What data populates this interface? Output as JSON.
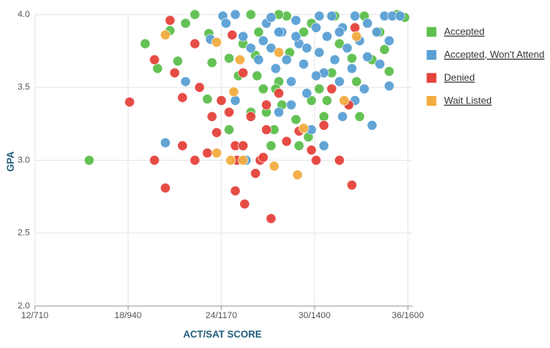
{
  "chart_data": {
    "type": "scatter",
    "x_label": "ACT/SAT SCORE",
    "y_label": "GPA",
    "xlim": [
      12,
      36.3
    ],
    "ylim": [
      2,
      4
    ],
    "xticks": [
      {
        "value": 12,
        "label": "12/710"
      },
      {
        "value": 18,
        "label": "18/940"
      },
      {
        "value": 24,
        "label": "24/1170"
      },
      {
        "value": 30,
        "label": "30/1400"
      },
      {
        "value": 36,
        "label": "36/1600"
      }
    ],
    "yticks": [
      {
        "value": 2,
        "label": "2.0"
      },
      2.5,
      {
        "value": 3,
        "label": "3.0"
      },
      3.5,
      {
        "value": 4,
        "label": "4.0"
      }
    ],
    "grid": true,
    "legend": "right",
    "series": [
      {
        "name": "Accepted",
        "color": "#5cbf4c",
        "x": [
          15.5,
          19.1,
          19.9,
          20.7,
          21.2,
          22.3,
          21.7,
          23.2,
          23.4,
          23.1,
          24.5,
          24.5,
          25.1,
          25.4,
          25.9,
          26.2,
          26.4,
          26.7,
          26.9,
          27.2,
          27.4,
          27.7,
          27.9,
          28.2,
          28.4,
          28.8,
          29.0,
          29.6,
          29.8,
          30.3,
          30.6,
          30.8,
          31.1,
          31.3,
          31.6,
          32.2,
          32.4,
          32.7,
          32.9,
          33.2,
          33.7,
          34.2,
          34.5,
          34.8,
          35.8,
          35.3,
          25.9,
          26.3,
          27.5,
          29.3,
          29.8,
          27.7
        ],
        "values": [
          3.0,
          3.8,
          3.63,
          3.89,
          3.68,
          4.0,
          3.94,
          3.87,
          3.67,
          3.42,
          3.21,
          3.7,
          3.58,
          3.8,
          4.0,
          3.72,
          3.88,
          3.49,
          3.33,
          3.1,
          3.21,
          3.54,
          3.38,
          3.99,
          3.74,
          3.28,
          3.1,
          3.16,
          3.41,
          3.49,
          3.3,
          3.41,
          3.6,
          3.99,
          3.8,
          3.38,
          3.7,
          3.54,
          3.3,
          3.99,
          3.69,
          3.88,
          3.76,
          3.61,
          3.98,
          4.0,
          3.33,
          3.58,
          3.49,
          3.88,
          3.94,
          4.0
        ]
      },
      {
        "name": "Accepted, Won't Attend",
        "color": "#5a9fd4",
        "x": [
          20.4,
          21.7,
          23.3,
          24.1,
          24.3,
          24.9,
          24.9,
          25.4,
          25.6,
          26.4,
          26.7,
          26.9,
          27.2,
          27.5,
          27.7,
          27.9,
          28.2,
          28.5,
          28.8,
          29.0,
          29.3,
          29.5,
          29.8,
          30.1,
          30.3,
          30.6,
          30.6,
          30.8,
          31.1,
          31.3,
          31.6,
          31.8,
          32.1,
          32.4,
          32.6,
          32.9,
          33.2,
          33.4,
          33.7,
          34.0,
          34.2,
          34.5,
          34.8,
          35.0,
          35.5,
          33.4,
          32.6,
          31.8,
          28.8,
          27.7,
          31.6,
          30.3,
          27.2,
          25.9,
          29.5,
          30.1,
          28.5,
          34.8
        ],
        "values": [
          3.12,
          3.54,
          3.83,
          3.99,
          3.94,
          4.0,
          3.41,
          3.85,
          3.0,
          3.69,
          3.82,
          3.94,
          3.77,
          3.63,
          3.33,
          3.88,
          3.69,
          3.54,
          3.96,
          3.8,
          3.66,
          3.46,
          3.21,
          3.91,
          3.74,
          3.6,
          3.1,
          3.85,
          3.99,
          3.69,
          3.54,
          3.91,
          3.77,
          3.63,
          3.99,
          3.82,
          3.49,
          3.94,
          3.24,
          3.88,
          3.66,
          3.99,
          3.51,
          3.99,
          3.99,
          3.71,
          3.41,
          3.3,
          3.85,
          3.88,
          3.88,
          3.99,
          3.98,
          3.77,
          3.77,
          3.58,
          3.38,
          3.82
        ]
      },
      {
        "name": "Denied",
        "color": "#e5423b",
        "x": [
          18.1,
          19.7,
          19.7,
          20.4,
          20.7,
          21.0,
          21.5,
          21.5,
          22.3,
          22.3,
          22.6,
          23.1,
          23.4,
          23.7,
          24.0,
          24.5,
          24.7,
          24.9,
          25.0,
          24.9,
          25.5,
          25.4,
          25.9,
          26.2,
          26.5,
          26.7,
          26.9,
          26.9,
          27.2,
          27.7,
          28.2,
          29.0,
          29.8,
          30.1,
          30.6,
          31.6,
          32.2,
          32.4,
          32.6,
          31.1,
          25.4
        ],
        "values": [
          3.4,
          3.69,
          3.0,
          2.81,
          3.96,
          3.6,
          3.43,
          3.1,
          3.8,
          3.0,
          3.5,
          3.05,
          3.3,
          3.19,
          3.41,
          3.33,
          3.86,
          3.1,
          3.0,
          2.79,
          2.7,
          3.1,
          3.3,
          2.91,
          3.0,
          3.02,
          3.38,
          3.21,
          2.6,
          3.46,
          3.13,
          3.2,
          3.07,
          3.0,
          3.24,
          3.0,
          3.38,
          2.83,
          3.91,
          3.49,
          3.6
        ]
      },
      {
        "name": "Wait Listed",
        "color": "#f2ac3f",
        "x": [
          20.4,
          23.7,
          24.6,
          24.8,
          25.2,
          25.4,
          27.4,
          27.7,
          28.9,
          29.3,
          31.9,
          32.7,
          23.7
        ],
        "values": [
          3.86,
          3.81,
          3.0,
          3.47,
          3.69,
          3.0,
          2.96,
          3.74,
          2.9,
          3.22,
          3.41,
          3.85,
          3.05
        ]
      }
    ]
  }
}
